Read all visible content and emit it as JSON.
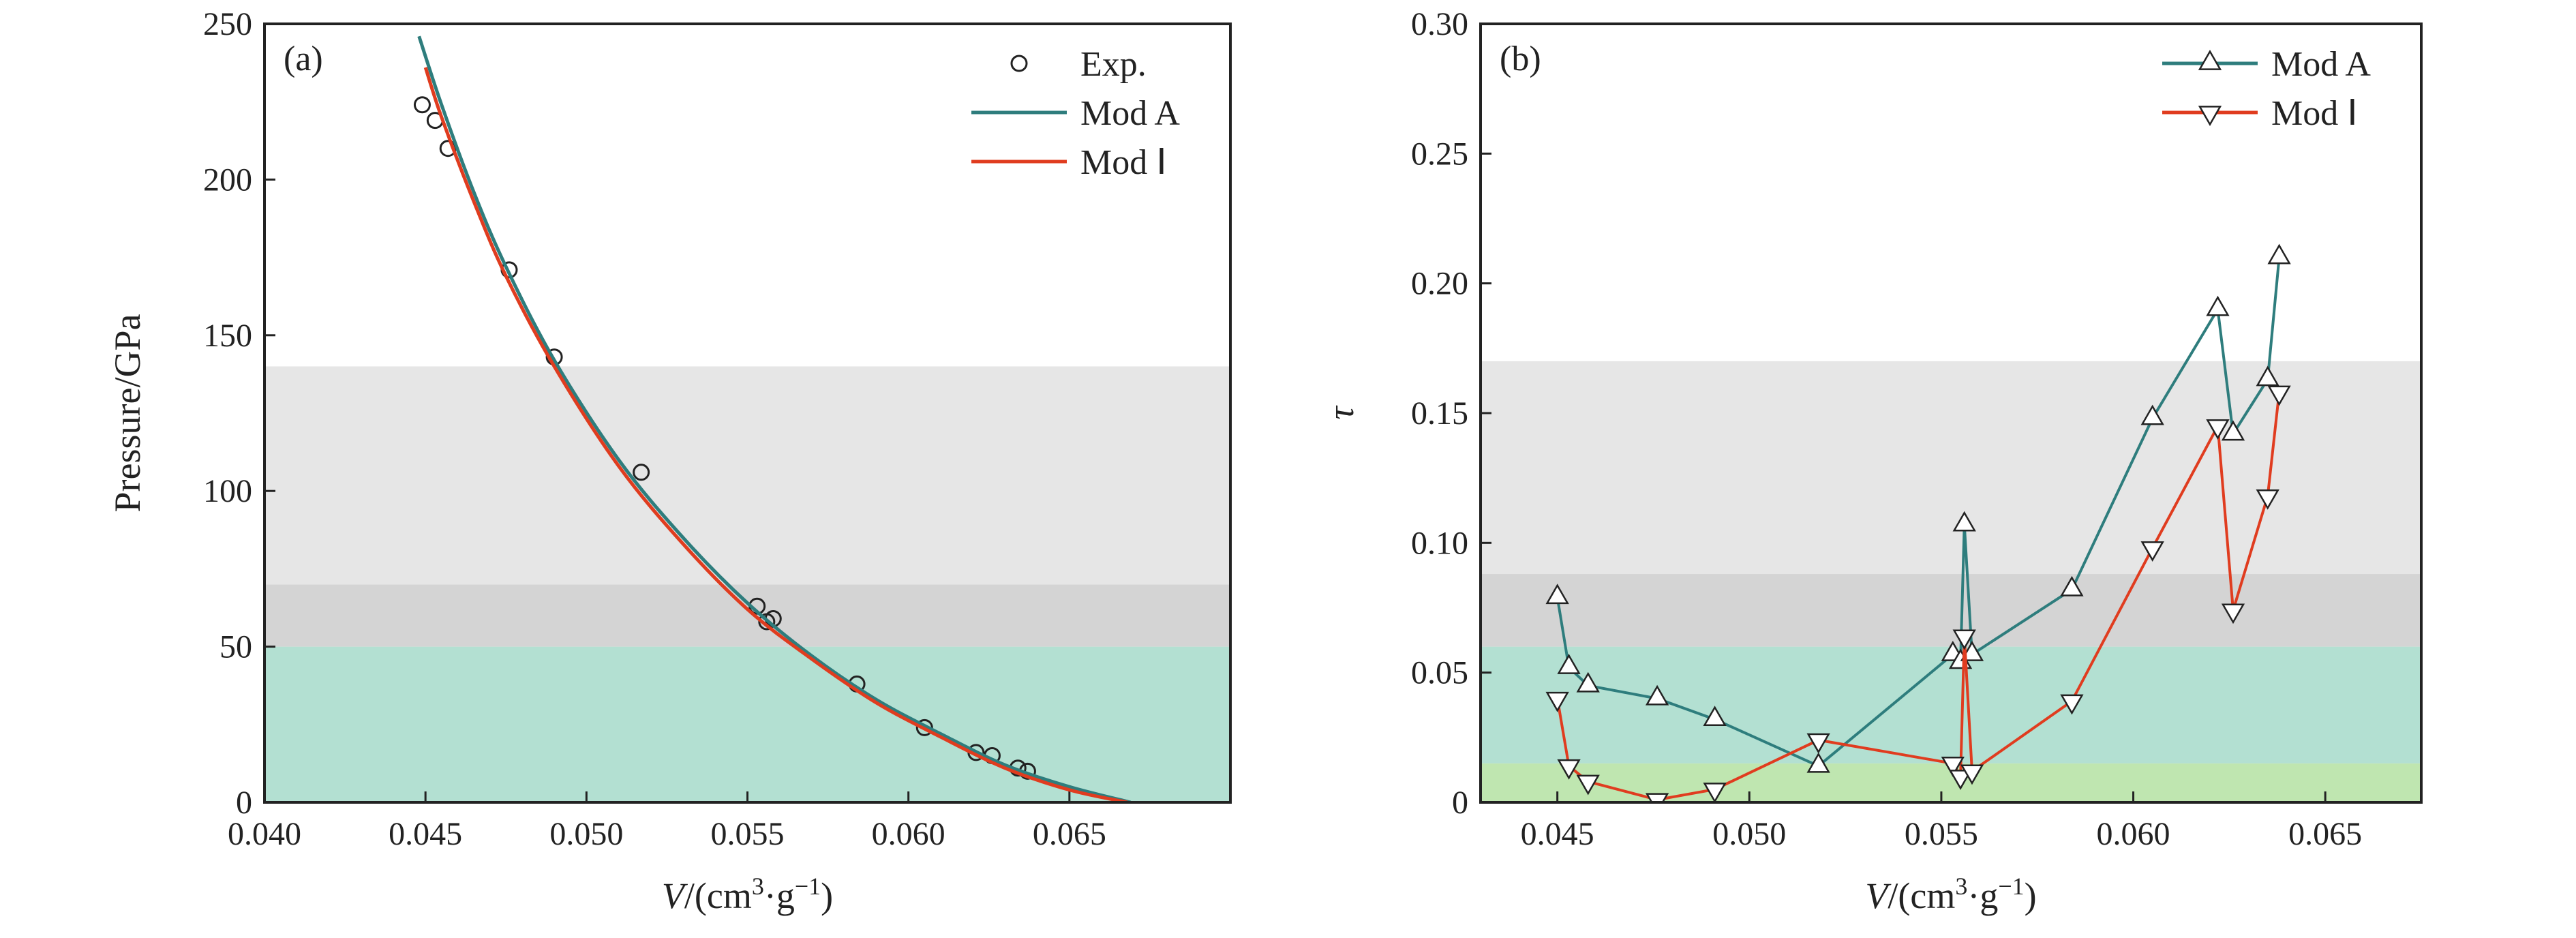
{
  "chart_data": [
    {
      "type": "line",
      "panel_label": "(a)",
      "xlabel": "V/(cm³·g⁻¹)",
      "xlabel_parts": {
        "var": "V",
        "unit_open": "/(cm",
        "sup1": "3",
        "mid": "·g",
        "sup2": "−1",
        "close": ")"
      },
      "ylabel": "Pressure/GPa",
      "xlim": [
        0.04,
        0.07
      ],
      "ylim": [
        0,
        250
      ],
      "xticks": [
        0.04,
        0.045,
        0.05,
        0.055,
        0.06,
        0.065
      ],
      "xtick_labels": [
        "0.040",
        "0.045",
        "0.050",
        "0.055",
        "0.060",
        "0.065"
      ],
      "yticks": [
        0,
        50,
        100,
        150,
        200,
        250
      ],
      "ytick_labels": [
        "0",
        "50",
        "100",
        "150",
        "200",
        "250"
      ],
      "background_bands": [
        {
          "y0": 0,
          "y1": 50,
          "color": "#b3e0d2"
        },
        {
          "y0": 50,
          "y1": 70,
          "color": "#d4d4d4"
        },
        {
          "y0": 70,
          "y1": 140,
          "color": "#e6e6e6"
        }
      ],
      "legend_position": "top-right",
      "series": [
        {
          "name": "Exp.",
          "kind": "scatter",
          "marker": "circle",
          "color": "#222222",
          "x": [
            0.0449,
            0.0453,
            0.0457,
            0.0476,
            0.049,
            0.0517,
            0.0553,
            0.0556,
            0.0558,
            0.0584,
            0.0605,
            0.0621,
            0.0626,
            0.0634,
            0.0637
          ],
          "y": [
            224,
            219,
            210,
            171,
            143,
            106,
            63,
            58,
            59,
            38,
            24,
            16,
            15,
            11,
            10
          ]
        },
        {
          "name": "Mod A",
          "kind": "line",
          "color": "#2e7d7d",
          "x": [
            0.0448,
            0.0455,
            0.0465,
            0.0475,
            0.049,
            0.051,
            0.053,
            0.055,
            0.057,
            0.059,
            0.061,
            0.063,
            0.065,
            0.0669
          ],
          "y": [
            246,
            224,
            196,
            172,
            142,
            110,
            85,
            64,
            47,
            33,
            22,
            12,
            5,
            0
          ]
        },
        {
          "name": "Mod Ⅰ",
          "kind": "line",
          "color": "#e03c1f",
          "x": [
            0.045,
            0.0455,
            0.0465,
            0.0475,
            0.049,
            0.051,
            0.053,
            0.055,
            0.057,
            0.059,
            0.061,
            0.063,
            0.065,
            0.0668
          ],
          "y": [
            236,
            220,
            193,
            169,
            140,
            108,
            83,
            62,
            46,
            32,
            21,
            11,
            4,
            0
          ]
        }
      ]
    },
    {
      "type": "line",
      "panel_label": "(b)",
      "xlabel": "V/(cm³·g⁻¹)",
      "xlabel_parts": {
        "var": "V",
        "unit_open": "/(cm",
        "sup1": "3",
        "mid": "·g",
        "sup2": "−1",
        "close": ")"
      },
      "ylabel": "τ",
      "xlim": [
        0.043,
        0.0675
      ],
      "ylim": [
        0,
        0.3
      ],
      "xticks": [
        0.045,
        0.05,
        0.055,
        0.06,
        0.065
      ],
      "xtick_labels": [
        "0.045",
        "0.050",
        "0.055",
        "0.060",
        "0.065"
      ],
      "yticks": [
        0,
        0.05,
        0.1,
        0.15,
        0.2,
        0.25,
        0.3
      ],
      "ytick_labels": [
        "0",
        "0.05",
        "0.10",
        "0.15",
        "0.20",
        "0.25",
        "0.30"
      ],
      "background_bands": [
        {
          "y0": 0,
          "y1": 0.015,
          "color": "#bfe6b0"
        },
        {
          "y0": 0.015,
          "y1": 0.06,
          "color": "#b3e0d2"
        },
        {
          "y0": 0.06,
          "y1": 0.088,
          "color": "#d4d4d4"
        },
        {
          "y0": 0.088,
          "y1": 0.17,
          "color": "#e6e6e6"
        }
      ],
      "legend_position": "top-right",
      "series": [
        {
          "name": "Mod A",
          "kind": "line-marker",
          "marker": "triangle-up",
          "color": "#2e7d7d",
          "fill": "#a8d8c8",
          "x": [
            0.045,
            0.0453,
            0.0458,
            0.0476,
            0.0491,
            0.0518,
            0.0553,
            0.0555,
            0.0556,
            0.0558,
            0.0584,
            0.0605,
            0.0622,
            0.0626,
            0.0635,
            0.0638
          ],
          "y": [
            0.079,
            0.052,
            0.045,
            0.04,
            0.032,
            0.014,
            0.057,
            0.054,
            0.107,
            0.057,
            0.082,
            0.148,
            0.19,
            0.142,
            0.163,
            0.21
          ]
        },
        {
          "name": "Mod Ⅰ",
          "kind": "line-marker",
          "marker": "triangle-down",
          "color": "#e03c1f",
          "fill": "#f2c89a",
          "x": [
            0.045,
            0.0453,
            0.0458,
            0.0476,
            0.0491,
            0.0518,
            0.0553,
            0.0555,
            0.0556,
            0.0558,
            0.0584,
            0.0605,
            0.0622,
            0.0626,
            0.0635,
            0.0638
          ],
          "y": [
            0.04,
            0.014,
            0.008,
            0.001,
            0.005,
            0.024,
            0.015,
            0.01,
            0.064,
            0.012,
            0.039,
            0.098,
            0.145,
            0.074,
            0.118,
            0.158
          ]
        }
      ]
    }
  ]
}
